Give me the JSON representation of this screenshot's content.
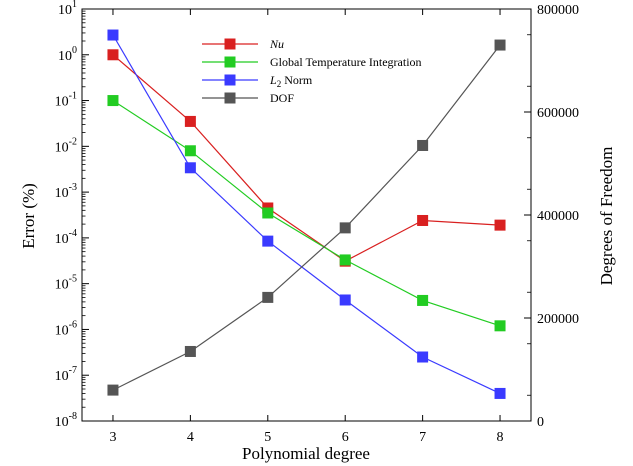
{
  "chart_data": {
    "type": "line",
    "title": "",
    "xlabel": "Polynomial degree",
    "ylabel_left": "Error (%)",
    "ylabel_right": "Degrees of Freedom",
    "x": [
      3,
      4,
      5,
      6,
      7,
      8
    ],
    "x_ticks": [
      "3",
      "4",
      "5",
      "6",
      "7",
      "8"
    ],
    "xlim": [
      2.6,
      8.4
    ],
    "ylim_left": [
      1e-08,
      10
    ],
    "y_scale_left": "log",
    "y_ticks_left": [
      {
        "base": "10",
        "exp": "1"
      },
      {
        "base": "10",
        "exp": "0"
      },
      {
        "base": "10",
        "exp": "-1"
      },
      {
        "base": "10",
        "exp": "-2"
      },
      {
        "base": "10",
        "exp": "-3"
      },
      {
        "base": "10",
        "exp": "-4"
      },
      {
        "base": "10",
        "exp": "-5"
      },
      {
        "base": "10",
        "exp": "-6"
      },
      {
        "base": "10",
        "exp": "-7"
      },
      {
        "base": "10",
        "exp": "-8"
      }
    ],
    "ylim_right": [
      0,
      800000
    ],
    "y_ticks_right": [
      "800000",
      "600000",
      "400000",
      "200000",
      "0"
    ],
    "grid": false,
    "legend_position": "top-center",
    "series": [
      {
        "name": "Nu",
        "axis": "left",
        "color": "#d92020",
        "values": [
          1.0,
          0.035,
          0.00045,
          3.1e-05,
          0.00024,
          0.00019
        ]
      },
      {
        "name": "Global Temperature Integration",
        "axis": "left",
        "color": "#22cc22",
        "values": [
          0.1,
          0.008,
          0.00035,
          3.3e-05,
          4.3e-06,
          1.2e-06
        ]
      },
      {
        "name_prefix": "L",
        "name_sub": "2",
        "name_suffix": " Norm",
        "axis": "left",
        "color": "#3a3aff",
        "values": [
          2.7,
          0.0034,
          8.5e-05,
          4.4e-06,
          2.5e-07,
          4e-08
        ]
      },
      {
        "name": "DOF",
        "axis": "right",
        "color": "#555555",
        "values": [
          60000,
          135000,
          240000,
          375000,
          535000,
          730000
        ]
      }
    ]
  }
}
